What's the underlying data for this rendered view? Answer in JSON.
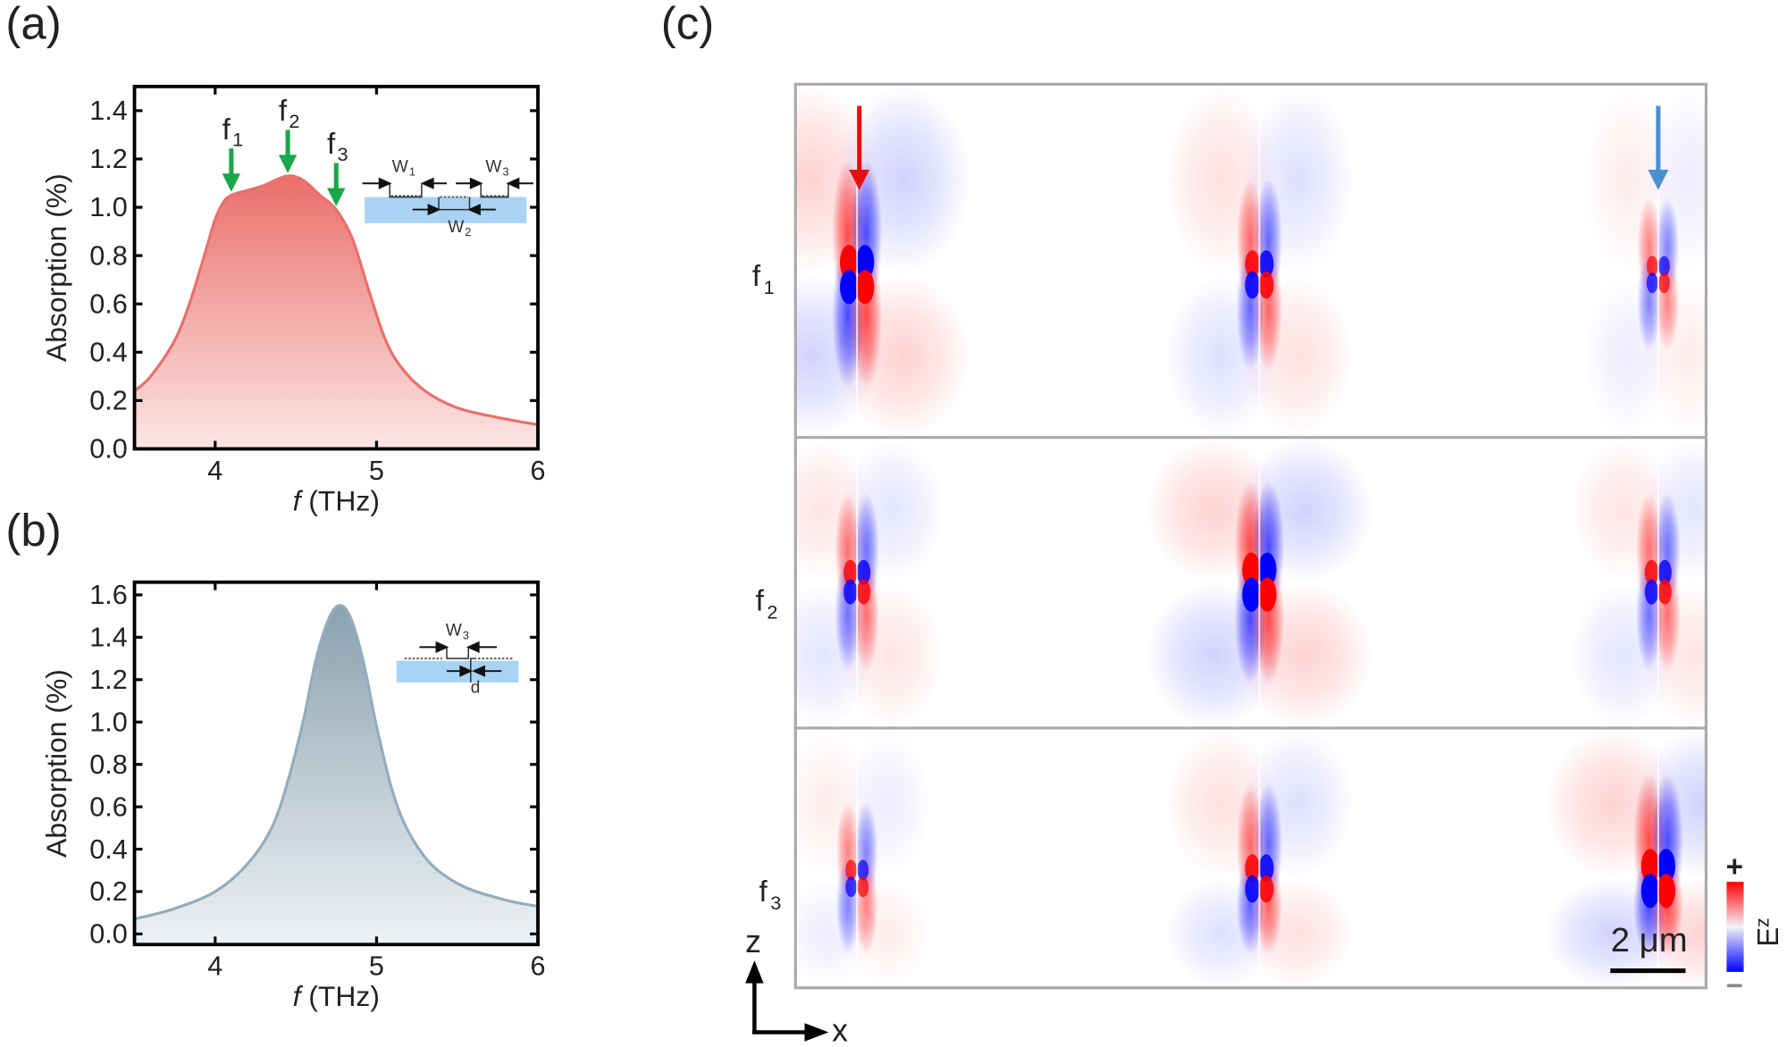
{
  "panel_labels": {
    "a": "(a)",
    "b": "(b)",
    "c": "(c)"
  },
  "chart_data": [
    {
      "type": "area",
      "panel": "a",
      "title": "",
      "xlabel_italic": "f",
      "xlabel": " (THz)",
      "ylabel": "Absorption (%)",
      "xlim": [
        3.5,
        6
      ],
      "ylim": [
        0,
        1.5
      ],
      "xticks": [
        4,
        5,
        6
      ],
      "yticks": [
        "0.0",
        "0.2",
        "0.4",
        "0.6",
        "0.8",
        "1.0",
        "1.2",
        "1.4"
      ],
      "line_color": "#e8706c",
      "fill_top": "#ea6f6a",
      "fill_bottom": "#fce6e5",
      "x": [
        3.5,
        3.6,
        3.75,
        3.85,
        3.95,
        4.0,
        4.05,
        4.1,
        4.2,
        4.3,
        4.4,
        4.47,
        4.55,
        4.65,
        4.75,
        4.85,
        4.95,
        5.05,
        5.15,
        5.3,
        5.5,
        5.75,
        6.0
      ],
      "y": [
        0.24,
        0.3,
        0.45,
        0.62,
        0.84,
        0.95,
        1.02,
        1.05,
        1.07,
        1.09,
        1.12,
        1.13,
        1.11,
        1.05,
        0.99,
        0.87,
        0.66,
        0.46,
        0.34,
        0.24,
        0.17,
        0.13,
        0.1
      ],
      "markers": [
        {
          "label": "f",
          "sub": "1",
          "x": 4.1
        },
        {
          "label": "f",
          "sub": "2",
          "x": 4.45
        },
        {
          "label": "f",
          "sub": "3",
          "x": 4.75
        }
      ],
      "marker_color": "#1aa64a",
      "inset": {
        "w1": "W",
        "w1_sub": "1",
        "w2": "W",
        "w2_sub": "2",
        "w3": "W",
        "w3_sub": "3"
      }
    },
    {
      "type": "area",
      "panel": "b",
      "title": "",
      "xlabel_italic": "f",
      "xlabel": " (THz)",
      "ylabel": "Absorption (%)",
      "xlim": [
        3.5,
        6
      ],
      "ylim": [
        -0.05,
        1.66
      ],
      "xticks": [
        4,
        5,
        6
      ],
      "yticks": [
        "0.0",
        "0.2",
        "0.4",
        "0.6",
        "0.8",
        "1.0",
        "1.2",
        "1.4",
        "1.6"
      ],
      "line_color": "#93adbd",
      "fill_top": "#8aa1af",
      "fill_bottom": "#eef2f4",
      "x": [
        3.5,
        3.75,
        4.0,
        4.2,
        4.35,
        4.45,
        4.55,
        4.62,
        4.7,
        4.77,
        4.84,
        4.92,
        5.0,
        5.1,
        5.2,
        5.35,
        5.55,
        5.8,
        6.0
      ],
      "y": [
        0.07,
        0.12,
        0.2,
        0.33,
        0.5,
        0.72,
        1.02,
        1.28,
        1.48,
        1.55,
        1.49,
        1.28,
        0.98,
        0.67,
        0.48,
        0.32,
        0.22,
        0.16,
        0.13
      ],
      "inset": {
        "w3": "W",
        "w3_sub": "3",
        "d": "d"
      }
    }
  ],
  "field_map": {
    "rows": [
      {
        "label": "f",
        "sub": "1",
        "amplitudes": [
          1.0,
          0.7,
          0.4
        ]
      },
      {
        "label": "f",
        "sub": "2",
        "amplitudes": [
          0.6,
          1.0,
          0.6
        ]
      },
      {
        "label": "f",
        "sub": "3",
        "amplitudes": [
          0.4,
          0.7,
          1.0
        ]
      }
    ],
    "incident_arrow_color": "#e41010",
    "outgoing_arrow_color": "#4a90d0",
    "scale_bar": "2 μm",
    "axis_z": "z",
    "axis_x": "x",
    "colorbar": {
      "plus": "+",
      "minus": "−",
      "label": "E",
      "label_sub": "z",
      "max_color": "#ff0000",
      "min_color": "#0000ff"
    }
  }
}
